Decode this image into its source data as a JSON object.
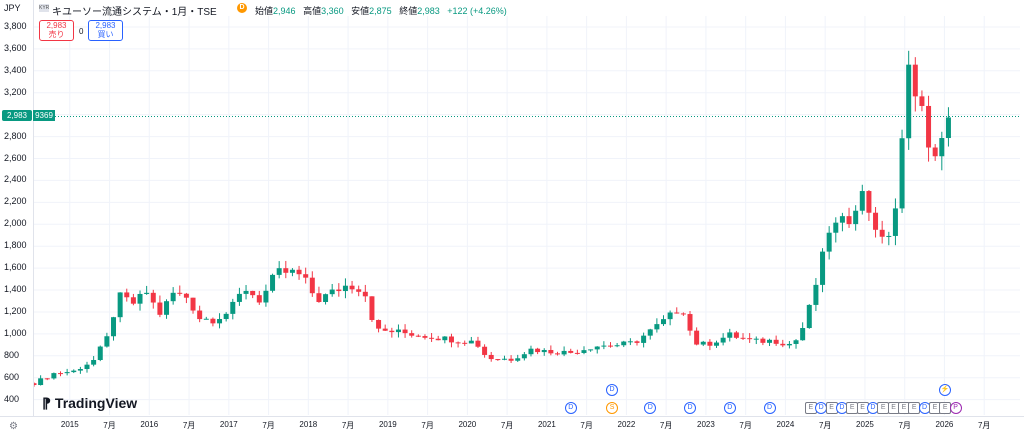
{
  "header": {
    "currency": "JPY",
    "logo_text": "KYR",
    "symbol_title": "キユーソー流通システム・1月・TSE",
    "dividend_icon": "D",
    "ohlc": [
      {
        "label": "始値",
        "value": "2,946"
      },
      {
        "label": "高値",
        "value": "3,360"
      },
      {
        "label": "安値",
        "value": "2,875"
      },
      {
        "label": "終値",
        "value": "2,983"
      },
      {
        "label": "",
        "value": "+122 (+4.26%)"
      }
    ]
  },
  "trade": {
    "sell_price": "2,983",
    "sell_label": "売り",
    "spread": "0",
    "buy_price": "2,983",
    "buy_label": "買い"
  },
  "price_label": "2,983",
  "countdown_label": "9369",
  "branding": "TradingView",
  "colors": {
    "up": "#089981",
    "down": "#f23645",
    "grid": "#f0f3fa"
  },
  "chart_data": {
    "type": "candlestick",
    "y_axis_ticks": [
      "3,800",
      "3,600",
      "3,400",
      "3,200",
      "3,000",
      "2,983",
      "2,800",
      "2,600",
      "2,400",
      "2,200",
      "2,000",
      "1,800",
      "1,600",
      "1,400",
      "1,200",
      "1,000",
      "800",
      "600",
      "400"
    ],
    "y_tick_values": [
      3800,
      3600,
      3400,
      3200,
      3000,
      2800,
      2600,
      2400,
      2200,
      2000,
      1800,
      1600,
      1400,
      1200,
      1000,
      800,
      600,
      400
    ],
    "ylim": [
      260,
      3900
    ],
    "x_axis_labels": [
      {
        "label": "2015",
        "t": 2015.0
      },
      {
        "label": "7月",
        "t": 2015.5
      },
      {
        "label": "2016",
        "t": 2016.0
      },
      {
        "label": "7月",
        "t": 2016.5
      },
      {
        "label": "2017",
        "t": 2017.0
      },
      {
        "label": "7月",
        "t": 2017.5
      },
      {
        "label": "2018",
        "t": 2018.0
      },
      {
        "label": "7月",
        "t": 2018.5
      },
      {
        "label": "2019",
        "t": 2019.0
      },
      {
        "label": "7月",
        "t": 2019.5
      },
      {
        "label": "2020",
        "t": 2020.0
      },
      {
        "label": "7月",
        "t": 2020.5
      },
      {
        "label": "2021",
        "t": 2021.0
      },
      {
        "label": "7月",
        "t": 2021.5
      },
      {
        "label": "2022",
        "t": 2022.0
      },
      {
        "label": "7月",
        "t": 2022.5
      },
      {
        "label": "2023",
        "t": 2023.0
      },
      {
        "label": "7月",
        "t": 2023.5
      },
      {
        "label": "2024",
        "t": 2024.0
      },
      {
        "label": "7月",
        "t": 2024.5
      },
      {
        "label": "2025",
        "t": 2025.0
      },
      {
        "label": "7月",
        "t": 2025.5
      },
      {
        "label": "2026",
        "t": 2026.0
      },
      {
        "label": "7月",
        "t": 2026.5
      }
    ],
    "anchors": [
      {
        "t": 2014.55,
        "v": 550
      },
      {
        "t": 2014.8,
        "v": 640
      },
      {
        "t": 2015.05,
        "v": 660
      },
      {
        "t": 2015.3,
        "v": 760
      },
      {
        "t": 2015.5,
        "v": 1000
      },
      {
        "t": 2015.6,
        "v": 1350
      },
      {
        "t": 2015.8,
        "v": 1280
      },
      {
        "t": 2016.0,
        "v": 1400
      },
      {
        "t": 2016.1,
        "v": 1150
      },
      {
        "t": 2016.3,
        "v": 1370
      },
      {
        "t": 2016.5,
        "v": 1330
      },
      {
        "t": 2016.6,
        "v": 1150
      },
      {
        "t": 2016.8,
        "v": 1130
      },
      {
        "t": 2017.0,
        "v": 1200
      },
      {
        "t": 2017.2,
        "v": 1420
      },
      {
        "t": 2017.4,
        "v": 1300
      },
      {
        "t": 2017.6,
        "v": 1560
      },
      {
        "t": 2017.85,
        "v": 1560
      },
      {
        "t": 2018.0,
        "v": 1450
      },
      {
        "t": 2018.1,
        "v": 1300
      },
      {
        "t": 2018.3,
        "v": 1380
      },
      {
        "t": 2018.5,
        "v": 1450
      },
      {
        "t": 2018.7,
        "v": 1400
      },
      {
        "t": 2018.85,
        "v": 1030
      },
      {
        "t": 2019.1,
        "v": 1020
      },
      {
        "t": 2019.5,
        "v": 980
      },
      {
        "t": 2019.9,
        "v": 940
      },
      {
        "t": 2020.1,
        "v": 930
      },
      {
        "t": 2020.25,
        "v": 780
      },
      {
        "t": 2020.55,
        "v": 770
      },
      {
        "t": 2020.8,
        "v": 860
      },
      {
        "t": 2021.0,
        "v": 840
      },
      {
        "t": 2021.3,
        "v": 830
      },
      {
        "t": 2021.6,
        "v": 890
      },
      {
        "t": 2021.9,
        "v": 900
      },
      {
        "t": 2022.1,
        "v": 920
      },
      {
        "t": 2022.4,
        "v": 1080
      },
      {
        "t": 2022.7,
        "v": 1250
      },
      {
        "t": 2022.85,
        "v": 920
      },
      {
        "t": 2023.0,
        "v": 900
      },
      {
        "t": 2023.3,
        "v": 990
      },
      {
        "t": 2023.6,
        "v": 930
      },
      {
        "t": 2023.85,
        "v": 940
      },
      {
        "t": 2024.1,
        "v": 900
      },
      {
        "t": 2024.25,
        "v": 1100
      },
      {
        "t": 2024.4,
        "v": 1500
      },
      {
        "t": 2024.55,
        "v": 1950
      },
      {
        "t": 2024.8,
        "v": 2050
      },
      {
        "t": 2024.95,
        "v": 2300
      },
      {
        "t": 2025.05,
        "v": 2130
      },
      {
        "t": 2025.25,
        "v": 1780
      },
      {
        "t": 2025.4,
        "v": 2200
      },
      {
        "t": 2025.55,
        "v": 3400
      },
      {
        "t": 2025.7,
        "v": 3150
      },
      {
        "t": 2025.8,
        "v": 2650
      },
      {
        "t": 2025.95,
        "v": 2700
      },
      {
        "t": 2026.08,
        "v": 2983
      }
    ],
    "events": [
      {
        "t": 2021.3,
        "k": "D"
      },
      {
        "t": 2021.82,
        "k": "S"
      },
      {
        "t": 2021.82,
        "k": "D",
        "row": 2
      },
      {
        "t": 2022.3,
        "k": "D"
      },
      {
        "t": 2022.8,
        "k": "D"
      },
      {
        "t": 2023.3,
        "k": "D"
      },
      {
        "t": 2023.8,
        "k": "D"
      },
      {
        "t": 2024.32,
        "k": "E"
      },
      {
        "t": 2024.45,
        "k": "D"
      },
      {
        "t": 2024.58,
        "k": "E"
      },
      {
        "t": 2024.71,
        "k": "D"
      },
      {
        "t": 2024.84,
        "k": "E"
      },
      {
        "t": 2024.97,
        "k": "E"
      },
      {
        "t": 2025.1,
        "k": "D"
      },
      {
        "t": 2025.23,
        "k": "E"
      },
      {
        "t": 2025.36,
        "k": "E"
      },
      {
        "t": 2025.49,
        "k": "E"
      },
      {
        "t": 2025.62,
        "k": "E"
      },
      {
        "t": 2025.75,
        "k": "D"
      },
      {
        "t": 2025.88,
        "k": "E"
      },
      {
        "t": 2026.01,
        "k": "E"
      },
      {
        "t": 2026.14,
        "k": "P"
      },
      {
        "t": 2026.01,
        "k": "⚡",
        "row": 2
      }
    ]
  }
}
